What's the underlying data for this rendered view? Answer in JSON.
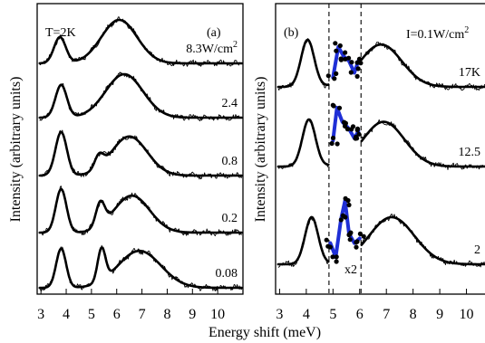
{
  "figure": {
    "xlabel": "Energy shift (meV)",
    "ylabel": "Intensity (arbitrary units)"
  },
  "chart_data": [
    {
      "type": "line",
      "panel_label": "(a)",
      "condition": "T=2K",
      "xlabel": "Energy shift (meV)",
      "ylabel": "Intensity (arbitrary units)",
      "xlim": [
        2.85,
        11.0
      ],
      "xticks": [
        "3",
        "4",
        "5",
        "6",
        "7",
        "8",
        "9",
        "10"
      ],
      "series": [
        {
          "name": "8.3W/cm²",
          "label": "8.3W/cm",
          "label_sup": "2",
          "peaks": [
            {
              "x": 3.75,
              "h": 0.6,
              "w": 0.33
            },
            {
              "x": 6.1,
              "h": 1.0,
              "w": 1.0
            }
          ],
          "baseline": 0.0,
          "offset": 4
        },
        {
          "name": "2.4",
          "label": "2.4",
          "peaks": [
            {
              "x": 3.8,
              "h": 0.75,
              "w": 0.32
            },
            {
              "x": 6.3,
              "h": 1.0,
              "w": 1.05
            }
          ],
          "baseline": 0.0,
          "offset": 3
        },
        {
          "name": "0.8",
          "label": "0.8",
          "peaks": [
            {
              "x": 3.8,
              "h": 1.0,
              "w": 0.32
            },
            {
              "x": 5.3,
              "h": 0.3,
              "w": 0.25
            },
            {
              "x": 6.5,
              "h": 0.9,
              "w": 1.0
            }
          ],
          "baseline": 0.0,
          "offset": 2
        },
        {
          "name": "0.2",
          "label": "0.2",
          "peaks": [
            {
              "x": 3.8,
              "h": 1.0,
              "w": 0.3
            },
            {
              "x": 5.35,
              "h": 0.55,
              "w": 0.25
            },
            {
              "x": 6.6,
              "h": 0.85,
              "w": 1.0
            }
          ],
          "baseline": 0.0,
          "offset": 1
        },
        {
          "name": "0.08",
          "label": "0.08",
          "peaks": [
            {
              "x": 3.8,
              "h": 0.9,
              "w": 0.28
            },
            {
              "x": 5.4,
              "h": 0.75,
              "w": 0.22
            },
            {
              "x": 6.9,
              "h": 0.85,
              "w": 1.2
            }
          ],
          "baseline": 0.0,
          "offset": 0
        }
      ]
    },
    {
      "type": "line",
      "panel_label": "(b)",
      "condition": "I=0.1W/cm²",
      "condition_text": "I=0.1W/cm",
      "condition_sup": "2",
      "xlabel": "Energy shift (meV)",
      "ylabel": "Intensity (arbitrary units)",
      "xlim": [
        2.85,
        11.0
      ],
      "xticks": [
        "3",
        "4",
        "5",
        "6",
        "7",
        "8",
        "9",
        "10"
      ],
      "dashed_lines_x": [
        4.85,
        6.05
      ],
      "scale_annotation": "x2",
      "series": [
        {
          "name": "17K",
          "label": "17K",
          "peaks": [
            {
              "x": 4.05,
              "h": 1.0,
              "w": 0.35
            },
            {
              "x": 6.8,
              "h": 0.9,
              "w": 1.1
            }
          ],
          "offset": 2,
          "mid": [
            [
              5.0,
              0.2
            ],
            [
              5.2,
              0.85
            ],
            [
              5.4,
              0.65
            ],
            [
              5.6,
              0.55
            ],
            [
              5.8,
              0.3
            ],
            [
              5.95,
              0.55
            ]
          ]
        },
        {
          "name": "12.5",
          "label": "12.5",
          "peaks": [
            {
              "x": 4.1,
              "h": 1.0,
              "w": 0.35
            },
            {
              "x": 6.9,
              "h": 0.95,
              "w": 1.1
            }
          ],
          "offset": 1,
          "mid": [
            [
              5.0,
              0.55
            ],
            [
              5.15,
              1.25
            ],
            [
              5.35,
              0.95
            ],
            [
              5.6,
              0.8
            ],
            [
              5.8,
              0.6
            ],
            [
              5.95,
              0.75
            ]
          ]
        },
        {
          "name": "2",
          "label": "2",
          "peaks": [
            {
              "x": 4.2,
              "h": 1.0,
              "w": 0.35
            },
            {
              "x": 7.2,
              "h": 1.0,
              "w": 1.2
            }
          ],
          "offset": 0,
          "mid": [
            [
              4.9,
              0.45
            ],
            [
              5.1,
              0.15
            ],
            [
              5.3,
              0.95
            ],
            [
              5.45,
              1.35
            ],
            [
              5.6,
              0.65
            ],
            [
              5.8,
              0.45
            ],
            [
              6.0,
              0.55
            ]
          ]
        }
      ]
    }
  ]
}
